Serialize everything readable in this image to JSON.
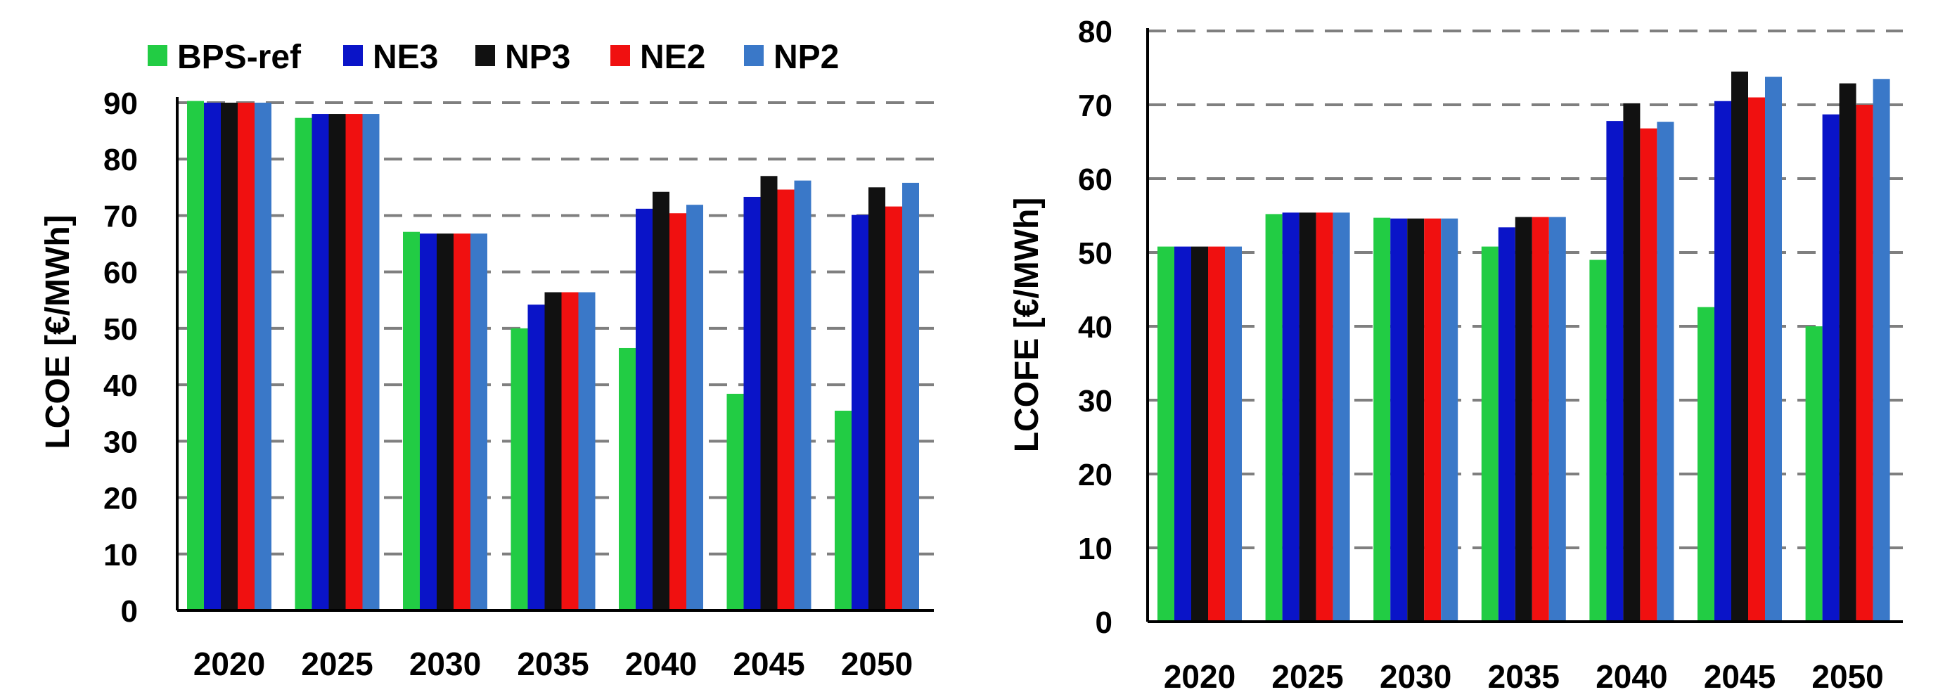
{
  "chart_data": [
    {
      "type": "bar",
      "ylabel": "LCOE [€/MWh]",
      "categories": [
        "2020",
        "2025",
        "2030",
        "2035",
        "2040",
        "2045",
        "2050"
      ],
      "ylim": [
        0,
        90
      ],
      "yticks": [
        0,
        10,
        20,
        30,
        40,
        50,
        60,
        70,
        80,
        90
      ],
      "grid": "horizontal dashed",
      "legend": "top",
      "series": [
        {
          "name": "BPS-ref",
          "color": "#22CC44",
          "values": [
            90.3,
            87.3,
            67.1,
            50.0,
            46.5,
            38.4,
            35.4
          ]
        },
        {
          "name": "NE3",
          "color": "#0A14C8",
          "values": [
            90.0,
            88.0,
            66.8,
            54.2,
            71.2,
            73.3,
            70.1
          ]
        },
        {
          "name": "NP3",
          "color": "#111111",
          "values": [
            90.0,
            88.0,
            66.8,
            56.4,
            74.2,
            77.0,
            75.0
          ]
        },
        {
          "name": "NE2",
          "color": "#F01010",
          "values": [
            90.0,
            88.0,
            66.8,
            56.4,
            70.4,
            74.6,
            71.6
          ]
        },
        {
          "name": "NP2",
          "color": "#3A78C8",
          "values": [
            90.0,
            88.0,
            66.8,
            56.4,
            71.9,
            76.2,
            75.8
          ]
        }
      ]
    },
    {
      "type": "bar",
      "ylabel": "LCOFE [€/MWh]",
      "categories": [
        "2020",
        "2025",
        "2030",
        "2035",
        "2040",
        "2045",
        "2050"
      ],
      "ylim": [
        0,
        80
      ],
      "yticks": [
        0,
        10,
        20,
        30,
        40,
        50,
        60,
        70,
        80
      ],
      "grid": "horizontal dashed",
      "series": [
        {
          "name": "BPS-ref",
          "color": "#22CC44",
          "values": [
            50.8,
            55.2,
            54.7,
            50.8,
            49.0,
            42.6,
            40.0
          ]
        },
        {
          "name": "NE3",
          "color": "#0A14C8",
          "values": [
            50.8,
            55.4,
            54.6,
            53.4,
            67.8,
            70.5,
            68.7
          ]
        },
        {
          "name": "NP3",
          "color": "#111111",
          "values": [
            50.8,
            55.4,
            54.6,
            54.8,
            70.2,
            74.5,
            72.9
          ]
        },
        {
          "name": "NE2",
          "color": "#F01010",
          "values": [
            50.8,
            55.4,
            54.6,
            54.8,
            66.8,
            71.0,
            70.0
          ]
        },
        {
          "name": "NP2",
          "color": "#3A78C8",
          "values": [
            50.8,
            55.4,
            54.6,
            54.8,
            67.7,
            73.8,
            73.5
          ]
        }
      ]
    }
  ]
}
